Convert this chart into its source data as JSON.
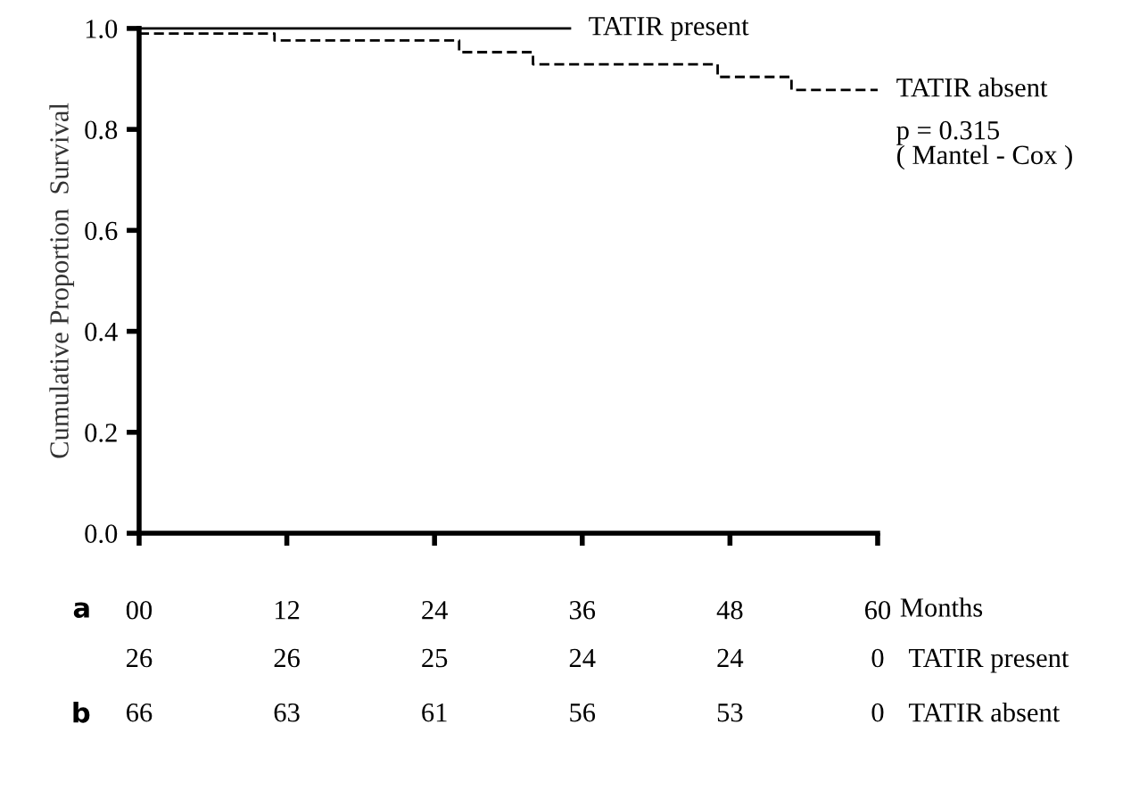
{
  "chart_data": {
    "type": "step",
    "xlabel": "Months",
    "ylabel": "Cumulative Proportion  Survival",
    "series": [
      {
        "name": "TATIR present",
        "color": "#000000",
        "line_style": "solid",
        "x": [
          0,
          35
        ],
        "values": [
          1.0,
          1.0
        ]
      },
      {
        "name": "TATIR absent",
        "color": "#000000",
        "line_style": "dashed",
        "x": [
          0,
          11,
          26,
          32,
          47,
          53,
          60
        ],
        "values": [
          0.99,
          0.976,
          0.953,
          0.929,
          0.904,
          0.878,
          0.878
        ]
      }
    ],
    "xlim": [
      0,
      60
    ],
    "xticks": [
      {
        "value": 0,
        "label": "00"
      },
      {
        "value": 12,
        "label": "12"
      },
      {
        "value": 24,
        "label": "24"
      },
      {
        "value": 36,
        "label": "36"
      },
      {
        "value": 48,
        "label": "48"
      },
      {
        "value": 60,
        "label": "60"
      }
    ],
    "ylim": [
      0,
      1.0
    ],
    "yticks": [
      {
        "value": 0,
        "label": "0.0"
      },
      {
        "value": 0.2,
        "label": "0.2"
      },
      {
        "value": 0.4,
        "label": "0.4"
      },
      {
        "value": 0.6,
        "label": "0.6"
      },
      {
        "value": 0.8,
        "label": "0.8"
      },
      {
        "value": 1.0,
        "label": "1.0"
      }
    ],
    "grid": false,
    "legend": false,
    "annotations": [
      "a",
      "b",
      "p = 0.315",
      "( Mantel - Cox )",
      "26",
      "26",
      "25",
      "24",
      "24",
      "0",
      "TATIR present",
      "66",
      "63",
      "61",
      "56",
      "53",
      "0",
      "TATIR absent"
    ]
  }
}
